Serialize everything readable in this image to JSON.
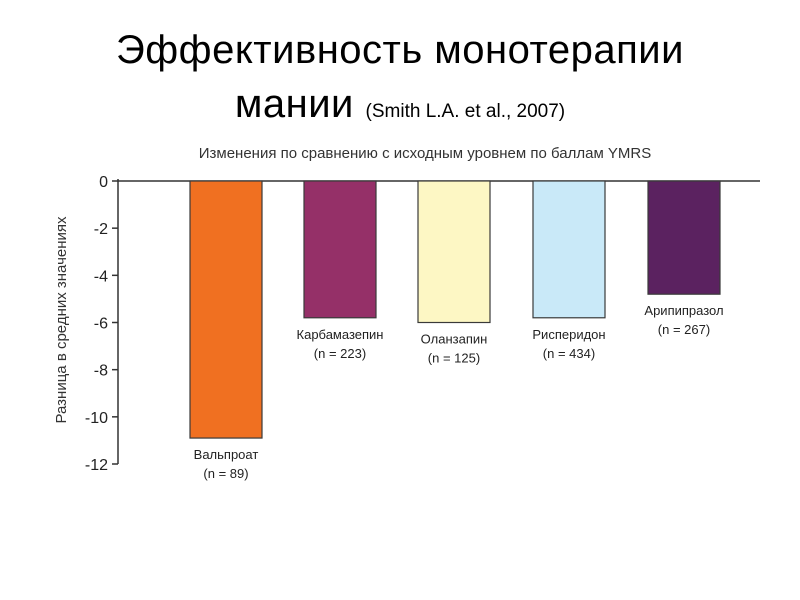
{
  "header": {
    "line1": "Эффективность монотерапии",
    "line2": "мании",
    "citation": "(Smith L.A. et al., 2007)"
  },
  "chart_data": {
    "type": "bar",
    "title": "Изменения по сравнению с исходным уровнем по баллам YMRS",
    "xlabel": "",
    "ylabel": "Разница в средних значениях",
    "ylim": [
      -12,
      0
    ],
    "yticks": [
      0,
      -2,
      -4,
      -6,
      -8,
      -10,
      -12
    ],
    "categories": [
      "Вальпроат",
      "Карбамазепин",
      "Оланзапин",
      "Рисперидон",
      "Арипипразол"
    ],
    "sample_sizes": [
      "(n = 89)",
      "(n = 223)",
      "(n = 125)",
      "(n = 434)",
      "(n = 267)"
    ],
    "values": [
      -10.9,
      -5.8,
      -6.0,
      -5.8,
      -4.8
    ],
    "colors": [
      "#f07021",
      "#953068",
      "#fdf7c4",
      "#c9e9f8",
      "#5b2260"
    ]
  }
}
